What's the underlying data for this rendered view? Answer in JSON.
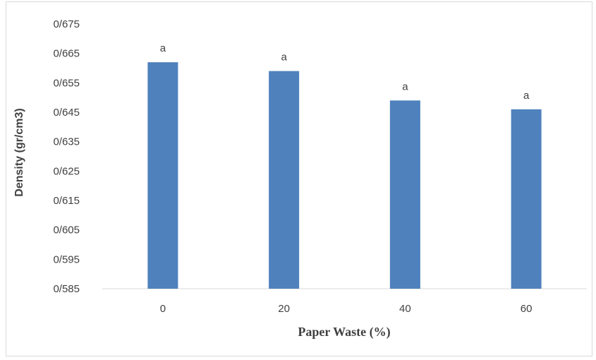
{
  "chart_data": {
    "type": "bar",
    "categories": [
      "0",
      "20",
      "40",
      "60"
    ],
    "values": [
      0.662,
      0.659,
      0.649,
      0.646
    ],
    "data_labels": [
      "a",
      "a",
      "a",
      "a"
    ],
    "xlabel": "Paper Waste (%)",
    "ylabel": "Density (gr/cm3)",
    "ylim": [
      0.585,
      0.675
    ],
    "yticks": [
      0.585,
      0.595,
      0.605,
      0.615,
      0.625,
      0.635,
      0.645,
      0.655,
      0.665,
      0.675
    ],
    "ytick_labels": [
      "0/585",
      "0/595",
      "0/605",
      "0/615",
      "0/625",
      "0/635",
      "0/645",
      "0/655",
      "0/665",
      "0/675"
    ],
    "bar_color": "#4f81bd",
    "grid": false,
    "legend": "none"
  }
}
